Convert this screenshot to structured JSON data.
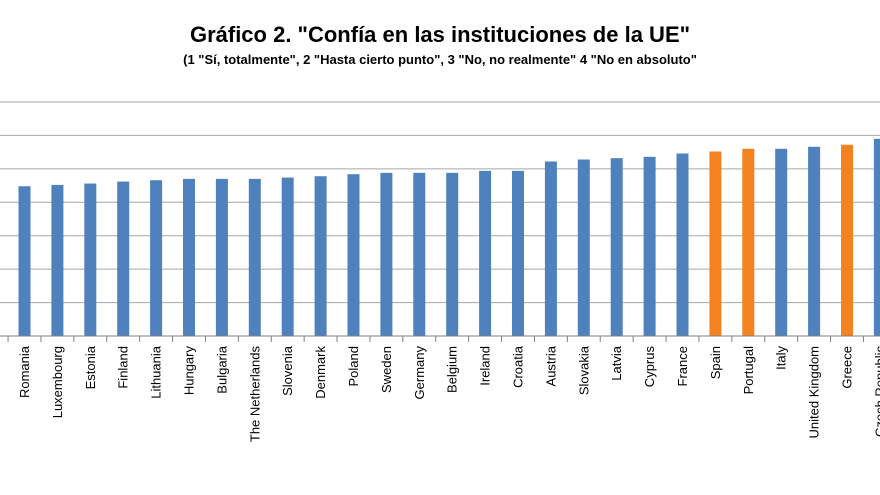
{
  "chart_data": {
    "type": "bar",
    "title": "Gráfico 2. \"Confía en las instituciones de la UE\"",
    "subtitle": "(1 \"Sí, totalmente\", 2 \"Hasta cierto punto\", 3 \"No, no realmente\" 4 \"No en absoluto\"",
    "xlabel": "",
    "ylabel": "",
    "grid": true,
    "ylim": [
      0,
      3.5
    ],
    "categories": [
      "Romania",
      "Luxembourg",
      "Estonia",
      "Finland",
      "Lithuania",
      "Hungary",
      "Bulgaria",
      "The Netherlands",
      "Slovenia",
      "Denmark",
      "Poland",
      "Sweden",
      "Germany",
      "Belgium",
      "Ireland",
      "Croatia",
      "Austria",
      "Slovakia",
      "Latvia",
      "Cyprus",
      "France",
      "Spain",
      "Portugal",
      "Italy",
      "United Kingdom",
      "Greece",
      "Czech Republic"
    ],
    "values": [
      2.24,
      2.26,
      2.28,
      2.31,
      2.33,
      2.35,
      2.35,
      2.35,
      2.37,
      2.39,
      2.42,
      2.44,
      2.44,
      2.44,
      2.47,
      2.47,
      2.61,
      2.64,
      2.66,
      2.68,
      2.73,
      2.76,
      2.8,
      2.8,
      2.83,
      2.86,
      2.95
    ],
    "colors": {
      "default": "#4f81bd",
      "highlight": "#f58220",
      "grid": "#a6a6a6",
      "axis": "#7f7f7f"
    },
    "highlighted": [
      "Spain",
      "Portugal",
      "Greece"
    ]
  }
}
